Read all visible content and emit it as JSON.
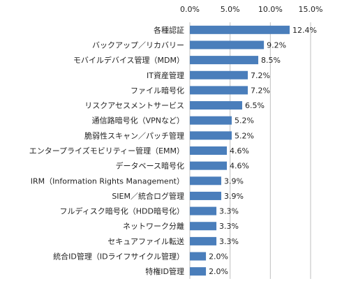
{
  "chart_data": {
    "type": "bar",
    "orientation": "horizontal",
    "color": "#4a7ebb",
    "grid": true,
    "categories": [
      "各種認証",
      "バックアップ／リカバリー",
      "モバイルデバイス管理（MDM）",
      "IT資産管理",
      "ファイル暗号化",
      "リスクアセスメントサービス",
      "通信路暗号化（VPNなど）",
      "脆弱性スキャン／パッチ管理",
      "エンタープライズモビリティー管理（EMM）",
      "データベース暗号化",
      "IRM（Information Rights Management）",
      "SIEM／統合ログ管理",
      "フルディスク暗号化（HDD暗号化）",
      "ネットワーク分離",
      "セキュアファイル転送",
      "統合ID管理（IDライフサイクル管理）",
      "特権ID管理"
    ],
    "values": [
      12.4,
      9.2,
      8.5,
      7.2,
      7.2,
      6.5,
      5.2,
      5.2,
      4.6,
      4.6,
      3.9,
      3.9,
      3.3,
      3.3,
      3.3,
      2.0,
      2.0
    ],
    "value_labels": [
      "12.4%",
      "9.2%",
      "8.5%",
      "7.2%",
      "7.2%",
      "6.5%",
      "5.2%",
      "5.2%",
      "4.6%",
      "4.6%",
      "3.9%",
      "3.9%",
      "3.3%",
      "3.3%",
      "3.3%",
      "2.0%",
      "2.0%"
    ],
    "xlim": [
      0,
      15
    ],
    "xticks": [
      {
        "value": 0,
        "label": "0.0%"
      },
      {
        "value": 5,
        "label": "5.0%"
      },
      {
        "value": 10,
        "label": "10.0%"
      },
      {
        "value": 15,
        "label": "15.0%"
      }
    ]
  }
}
